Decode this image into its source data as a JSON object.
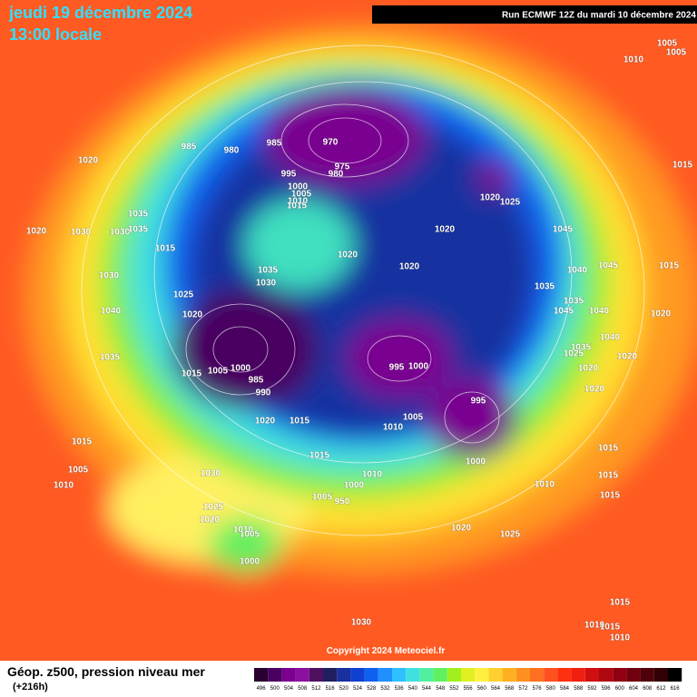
{
  "header": {
    "date": "jeudi 19 décembre 2024",
    "time": "13:00 locale",
    "run": "Run ECMWF 12Z du mardi 10 décembre 2024"
  },
  "copyright": "Copyright 2024 Meteociel.fr",
  "legend": {
    "title": "Géop. z500, pression niveau mer",
    "lead": "(+216h)",
    "values": [
      496,
      500,
      504,
      508,
      512,
      516,
      520,
      524,
      528,
      532,
      536,
      540,
      544,
      548,
      552,
      556,
      560,
      564,
      568,
      572,
      576,
      580,
      584,
      588,
      592,
      596,
      600,
      604,
      608,
      612,
      616
    ],
    "colors": [
      "#2a0030",
      "#4a0060",
      "#7a0090",
      "#8a10a0",
      "#501060",
      "#202060",
      "#1830a0",
      "#1040d0",
      "#1060f0",
      "#2090ff",
      "#30c0ff",
      "#40e0e0",
      "#50f0a0",
      "#60f060",
      "#a0f020",
      "#e0f020",
      "#fff040",
      "#ffd030",
      "#ffb020",
      "#ff9020",
      "#ff7020",
      "#ff5020",
      "#ff3010",
      "#f02010",
      "#d01010",
      "#b00810",
      "#900010",
      "#700010",
      "#500008",
      "#300004",
      "#000000"
    ]
  },
  "pressure_labels": [
    1005,
    1005,
    1010,
    1020,
    985,
    980,
    985,
    970,
    975,
    980,
    995,
    1000,
    1005,
    1010,
    1015,
    1020,
    1025,
    1015,
    1020,
    1030,
    1035,
    1030,
    1035,
    1015,
    1020,
    1020,
    1020,
    1045,
    1045,
    1040,
    1015,
    1035,
    1030,
    1030,
    1025,
    1035,
    1035,
    1040,
    1020,
    1045,
    1040,
    1020,
    1040,
    1035,
    1025,
    1020,
    1020,
    1035,
    1015,
    1005,
    1000,
    995,
    1000,
    985,
    990,
    1020,
    995,
    1005,
    1010,
    1020,
    1015,
    1015,
    1015,
    1015,
    1000,
    1005,
    1030,
    1010,
    1015,
    1010,
    1000,
    1010,
    1005,
    950,
    1015,
    1025,
    1020,
    1020,
    1025,
    1010,
    1005,
    1000,
    1015,
    1030,
    1010,
    1015,
    1010
  ]
}
